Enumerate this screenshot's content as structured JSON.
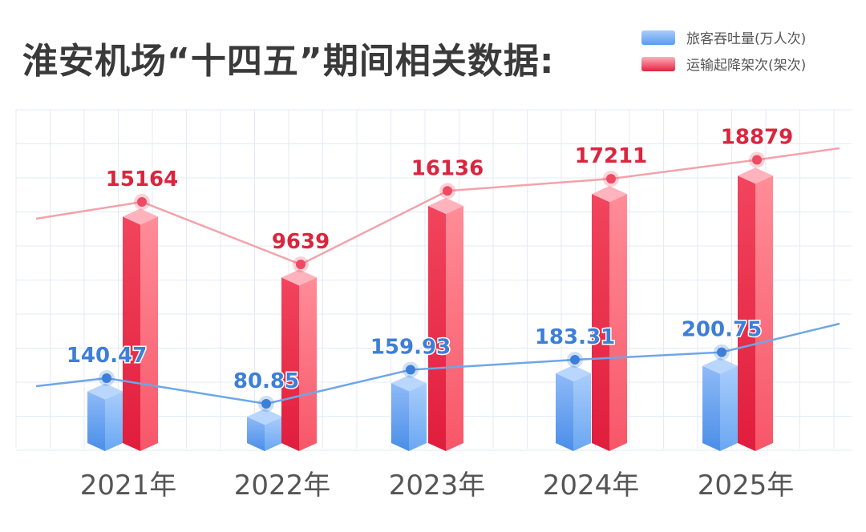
{
  "chart_data": {
    "type": "bar",
    "title": "淮安机场“十四五”期间相关数据:",
    "categories": [
      "2021年",
      "2022年",
      "2023年",
      "2024年",
      "2025年"
    ],
    "series": [
      {
        "name": "旅客吞吐量(万人次)",
        "values": [
          140.47,
          80.85,
          159.93,
          183.31,
          200.75
        ],
        "color": "#4a8ee8",
        "label_color": "#3d7fd8"
      },
      {
        "name": "运输起降架次(架次)",
        "values": [
          15164,
          9639,
          16136,
          17211,
          18879
        ],
        "color": "#ee3b55",
        "label_color": "#d9263f"
      }
    ],
    "overlay": "each series also drawn as a line with markers",
    "grid": true,
    "legend": "top-right"
  }
}
